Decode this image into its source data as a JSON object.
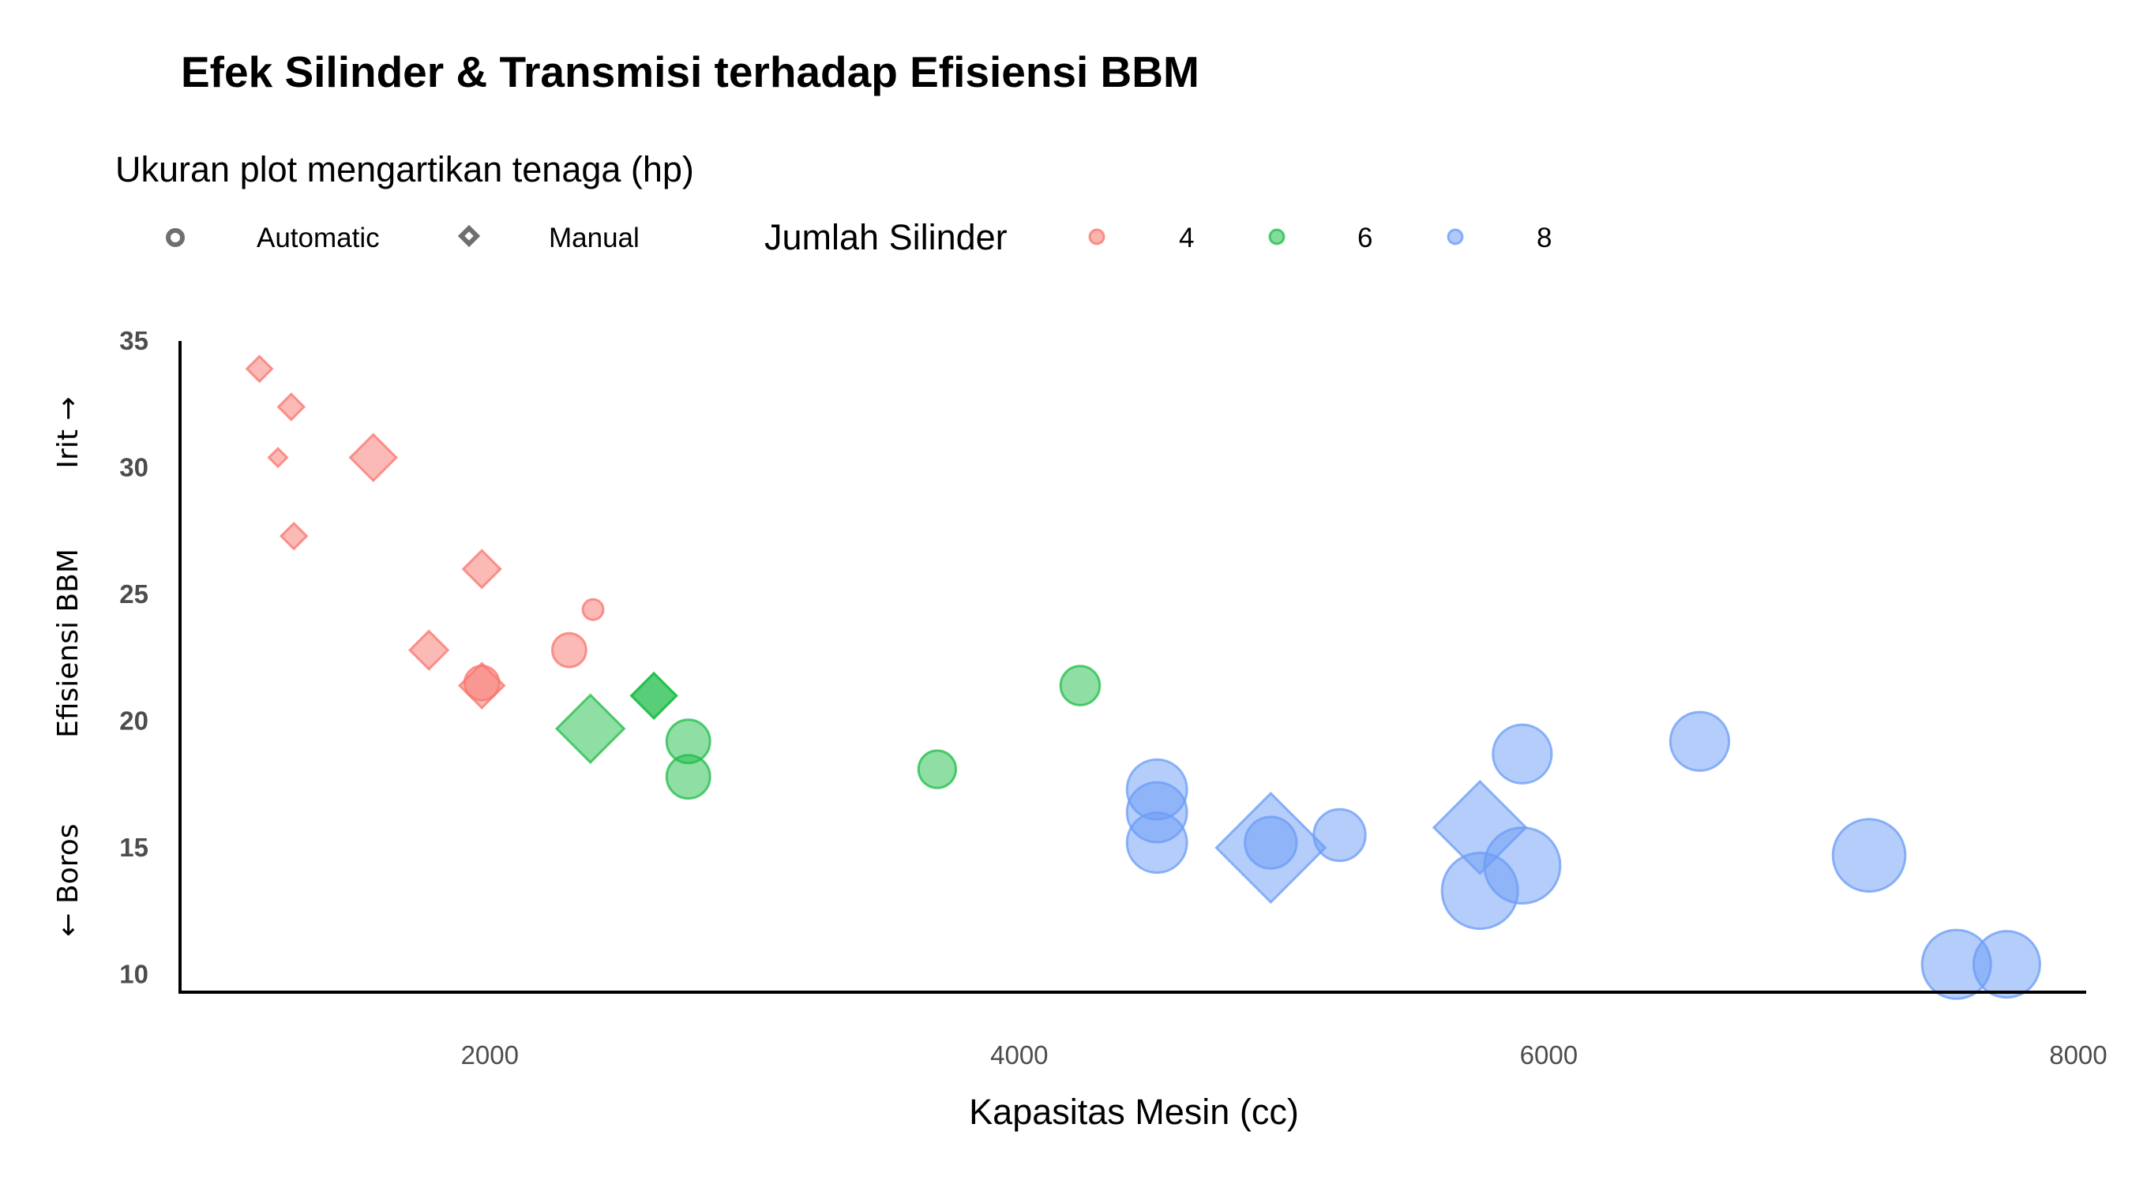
{
  "chart_data": {
    "type": "scatter",
    "title": "Efek Silinder & Transmisi terhadap Efisiensi BBM",
    "subtitle": "Ukuran plot mengartikan tenaga (hp)",
    "xlabel": "Kapasitas Mesin (cc)",
    "ylabel_top": "Irit →",
    "ylabel_middle": "Efisiensi BBM",
    "ylabel_bottom": "← Boros",
    "xlim": [
      830,
      8030
    ],
    "ylim": [
      9.3,
      35
    ],
    "x_ticks": [
      2000,
      4000,
      6000,
      8000
    ],
    "y_ticks": [
      10,
      15,
      20,
      25,
      30,
      35
    ],
    "grid": false,
    "legend_position": "top",
    "shape_legend": [
      {
        "label": "Automatic",
        "shape": "circle"
      },
      {
        "label": "Manual",
        "shape": "diamond"
      }
    ],
    "color_legend_title": "Jumlah Silinder",
    "color_legend": [
      {
        "label": "4",
        "color": "#f8766d"
      },
      {
        "label": "6",
        "color": "#1fbe4a"
      },
      {
        "label": "8",
        "color": "#6b9cf5"
      }
    ],
    "series": [
      {
        "cyl": "4",
        "color": "#f8766d",
        "points": [
          {
            "x": 1130,
            "y": 33.9,
            "hp": 65,
            "transmission": "Manual"
          },
          {
            "x": 1250,
            "y": 32.4,
            "hp": 66,
            "transmission": "Manual"
          },
          {
            "x": 1200,
            "y": 30.4,
            "hp": 52,
            "transmission": "Manual"
          },
          {
            "x": 1560,
            "y": 30.4,
            "hp": 113,
            "transmission": "Manual"
          },
          {
            "x": 1260,
            "y": 27.3,
            "hp": 66,
            "transmission": "Manual"
          },
          {
            "x": 1970,
            "y": 26.0,
            "hp": 91,
            "transmission": "Manual"
          },
          {
            "x": 2390,
            "y": 24.4,
            "hp": 62,
            "transmission": "Automatic"
          },
          {
            "x": 2300,
            "y": 22.8,
            "hp": 95,
            "transmission": "Automatic"
          },
          {
            "x": 1770,
            "y": 22.8,
            "hp": 93,
            "transmission": "Manual"
          },
          {
            "x": 1970,
            "y": 21.5,
            "hp": 97,
            "transmission": "Automatic"
          },
          {
            "x": 1970,
            "y": 21.4,
            "hp": 109,
            "transmission": "Manual"
          }
        ]
      },
      {
        "cyl": "6",
        "color": "#1fbe4a",
        "points": [
          {
            "x": 2620,
            "y": 21.0,
            "hp": 110,
            "transmission": "Manual"
          },
          {
            "x": 2620,
            "y": 21.0,
            "hp": 110,
            "transmission": "Manual"
          },
          {
            "x": 2380,
            "y": 19.7,
            "hp": 175,
            "transmission": "Manual"
          },
          {
            "x": 2750,
            "y": 19.2,
            "hp": 123,
            "transmission": "Automatic"
          },
          {
            "x": 2750,
            "y": 17.8,
            "hp": 123,
            "transmission": "Automatic"
          },
          {
            "x": 3690,
            "y": 18.1,
            "hp": 105,
            "transmission": "Automatic"
          },
          {
            "x": 4230,
            "y": 21.4,
            "hp": 110,
            "transmission": "Automatic"
          }
        ]
      },
      {
        "cyl": "8",
        "color": "#6b9cf5",
        "points": [
          {
            "x": 4520,
            "y": 17.3,
            "hp": 180,
            "transmission": "Automatic"
          },
          {
            "x": 4520,
            "y": 16.4,
            "hp": 180,
            "transmission": "Automatic"
          },
          {
            "x": 4520,
            "y": 15.2,
            "hp": 180,
            "transmission": "Automatic"
          },
          {
            "x": 4950,
            "y": 15.0,
            "hp": 335,
            "transmission": "Manual"
          },
          {
            "x": 4950,
            "y": 15.2,
            "hp": 150,
            "transmission": "Automatic"
          },
          {
            "x": 5210,
            "y": 15.5,
            "hp": 150,
            "transmission": "Automatic"
          },
          {
            "x": 5740,
            "y": 15.8,
            "hp": 264,
            "transmission": "Manual"
          },
          {
            "x": 5740,
            "y": 13.3,
            "hp": 245,
            "transmission": "Automatic"
          },
          {
            "x": 5900,
            "y": 18.7,
            "hp": 175,
            "transmission": "Automatic"
          },
          {
            "x": 5900,
            "y": 14.3,
            "hp": 245,
            "transmission": "Automatic"
          },
          {
            "x": 6570,
            "y": 19.2,
            "hp": 175,
            "transmission": "Automatic"
          },
          {
            "x": 7210,
            "y": 14.7,
            "hp": 230,
            "transmission": "Automatic"
          },
          {
            "x": 7540,
            "y": 10.4,
            "hp": 215,
            "transmission": "Automatic"
          },
          {
            "x": 7730,
            "y": 10.4,
            "hp": 205,
            "transmission": "Automatic"
          }
        ]
      }
    ]
  }
}
